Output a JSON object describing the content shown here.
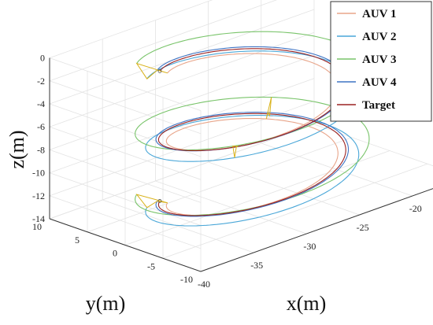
{
  "chart_data": {
    "type": "line",
    "projection": "3d",
    "title": "",
    "xlabel": "x(m)",
    "ylabel": "y(m)",
    "zlabel": "z(m)",
    "xlim": [
      -40,
      -15
    ],
    "ylim": [
      -10,
      10
    ],
    "zlim": [
      -14,
      0
    ],
    "x_ticks": [
      "-40",
      "-35",
      "-30",
      "-25",
      "-20",
      "-15"
    ],
    "y_ticks": [
      "-10",
      "-5",
      "0",
      "5",
      "10"
    ],
    "z_ticks": [
      "-14",
      "-12",
      "-10",
      "-8",
      "-6",
      "-4",
      "-2",
      "0"
    ],
    "grid": true,
    "legend_position": "top-right",
    "series": [
      {
        "name": "AUV 1",
        "color": "#e8a58a",
        "center": [
          -28,
          0
        ],
        "radius": 6.6,
        "z_start": -13.8,
        "z_end": -2.5,
        "turns": 2.0,
        "phase_deg": 135
      },
      {
        "name": "AUV 2",
        "color": "#4aa7d8",
        "center": [
          -28,
          0
        ],
        "radius": 8.2,
        "z_start": -14.1,
        "z_end": -2.9,
        "turns": 2.0,
        "phase_deg": 135
      },
      {
        "name": "AUV 3",
        "color": "#79c46a",
        "center": [
          -28,
          0
        ],
        "radius": 9.0,
        "z_start": -12.9,
        "z_end": -1.5,
        "turns": 2.0,
        "phase_deg": 135
      },
      {
        "name": "AUV 4",
        "color": "#3f74c4",
        "center": [
          -28,
          0
        ],
        "radius": 7.4,
        "z_start": -13.6,
        "z_end": -2.2,
        "turns": 2.0,
        "phase_deg": 135
      },
      {
        "name": "Target",
        "color": "#9b2222",
        "center": [
          -28,
          0
        ],
        "radius": 7.2,
        "z_start": -13.6,
        "z_end": -2.3,
        "turns": 2.0,
        "phase_deg": 135
      }
    ],
    "formation_markers_at_turn": [
      0,
      0.75,
      1.25,
      2.0
    ],
    "formation_color": "#d9b21a"
  }
}
